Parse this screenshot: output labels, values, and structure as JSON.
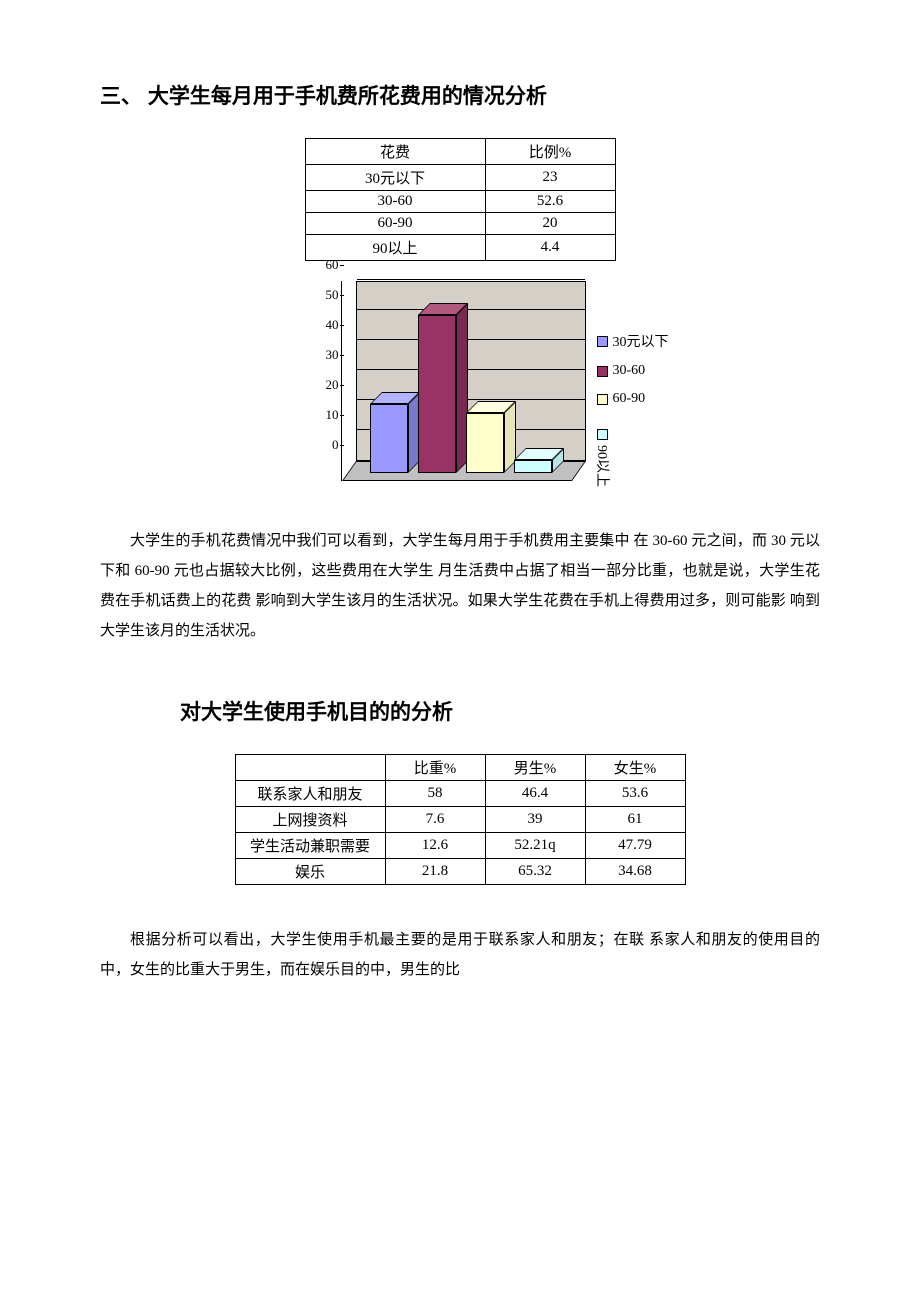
{
  "section1": {
    "title": "三、 大学生每月用于手机费所花费用的情况分析",
    "table": {
      "headers": [
        "花费",
        "比例%"
      ],
      "rows": [
        [
          "30元以下",
          "23"
        ],
        [
          "30-60",
          "52.6"
        ],
        [
          "60-90",
          "20"
        ],
        [
          "90以上",
          "4.4"
        ]
      ]
    },
    "chart": {
      "type": "3d-bar",
      "ylim": [
        0,
        60
      ],
      "ytick_step": 10,
      "yticks": [
        0,
        10,
        20,
        30,
        40,
        50,
        60
      ],
      "categories": [
        "30元以下",
        "30-60",
        "60-90",
        "90以上"
      ],
      "values": [
        23,
        52.6,
        20,
        4.4
      ],
      "bar_colors_front": [
        "#9999ff",
        "#993366",
        "#ffffcc",
        "#ccffff"
      ],
      "bar_colors_top": [
        "#b3b3ff",
        "#b35980",
        "#ffffe0",
        "#e0ffff"
      ],
      "bar_colors_side": [
        "#7a7acc",
        "#7a2952",
        "#e6e6b8",
        "#b8e6e6"
      ],
      "floor_color": "#c0c0c0",
      "wall_color": "#d4d0c8",
      "legend_labels": [
        "30元以下",
        "30-60",
        "60-90",
        "90以上"
      ],
      "axis_fontsize": 13,
      "legend_fontsize": 14
    },
    "paragraph": "大学生的手机花费情况中我们可以看到，大学生每月用于手机费用主要集中 在 30-60 元之间，而 30 元以下和 60-90 元也占据较大比例，这些费用在大学生 月生活费中占据了相当一部分比重，也就是说，大学生花费在手机话费上的花费 影响到大学生该月的生活状况。如果大学生花费在手机上得费用过多，则可能影 响到大学生该月的生活状况。"
  },
  "section2": {
    "title": "对大学生使用手机目的的分析",
    "table": {
      "headers": [
        "",
        "比重%",
        "男生%",
        "女生%"
      ],
      "rows": [
        [
          "联系家人和朋友",
          "58",
          "46.4",
          "53.6"
        ],
        [
          "上网搜资料",
          "7.6",
          "39",
          "61"
        ],
        [
          "学生活动兼职需要",
          "12.6",
          "52.21q",
          "47.79"
        ],
        [
          "娱乐",
          "21.8",
          "65.32",
          "34.68"
        ]
      ]
    },
    "paragraph": "根据分析可以看出，大学生使用手机最主要的是用于联系家人和朋友；在联 系家人和朋友的使用目的中，女生的比重大于男生，而在娱乐目的中，男生的比"
  }
}
